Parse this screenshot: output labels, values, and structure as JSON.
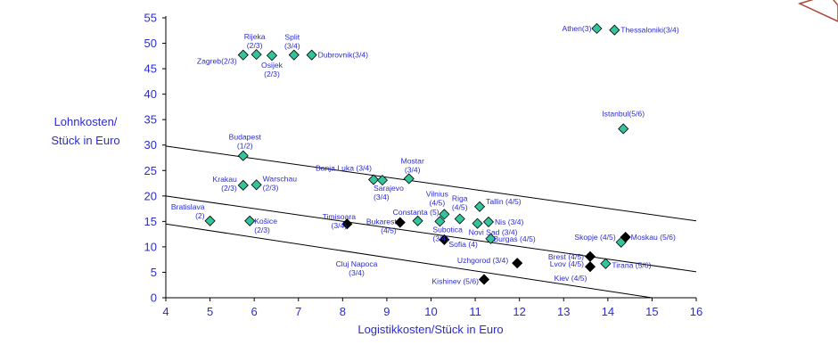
{
  "chart_data": {
    "type": "scatter",
    "title": "",
    "xlabel": "Logistikkosten/Stück in Euro",
    "ylabel_lines": [
      "Lohnkosten/",
      "Stück in Euro"
    ],
    "xlim": [
      4,
      16
    ],
    "ylim": [
      0,
      55
    ],
    "xticks": [
      4,
      5,
      6,
      7,
      8,
      9,
      10,
      11,
      12,
      13,
      14,
      15,
      16
    ],
    "yticks": [
      0,
      5,
      10,
      15,
      20,
      25,
      30,
      35,
      40,
      45,
      50,
      55
    ],
    "grid": false,
    "colors": {
      "axis_text": "#2b2bd0",
      "diamond_green": "#33c49b",
      "diamond_black": "#000000"
    },
    "series": [
      {
        "marker": "green-diamond",
        "points": [
          {
            "x": 5.75,
            "y": 47.7,
            "lines": [
              "Zagreb(2/3)"
            ]
          },
          {
            "x": 6.05,
            "y": 47.8,
            "lines": [
              "Rijeka",
              "(2/3)"
            ]
          },
          {
            "x": 6.4,
            "y": 47.6,
            "lines": [
              "Osijek",
              "(2/3)"
            ]
          },
          {
            "x": 6.9,
            "y": 47.7,
            "lines": [
              "Split",
              "(3/4)"
            ]
          },
          {
            "x": 7.3,
            "y": 47.7,
            "lines": [
              "Dubrovnik(3/4)"
            ]
          },
          {
            "x": 13.75,
            "y": 52.9,
            "lines": [
              "Athen(3)"
            ]
          },
          {
            "x": 14.15,
            "y": 52.6,
            "lines": [
              "Thessaloniki(3/4)"
            ]
          },
          {
            "x": 14.35,
            "y": 33.2,
            "lines": [
              "Istanbul(5/6)"
            ]
          },
          {
            "x": 5.75,
            "y": 27.9,
            "lines": [
              "Budapest",
              "(1/2)"
            ]
          },
          {
            "x": 5.75,
            "y": 22.1,
            "lines": [
              "Krakau",
              "(2/3)"
            ]
          },
          {
            "x": 6.05,
            "y": 22.2,
            "lines": [
              "Warschau",
              "(2/3)"
            ]
          },
          {
            "x": 8.7,
            "y": 23.2,
            "lines": [
              "Banja Luka (3/4)"
            ]
          },
          {
            "x": 8.9,
            "y": 23.1,
            "lines": [
              "Sarajevo",
              "(3/4)"
            ]
          },
          {
            "x": 9.5,
            "y": 23.4,
            "lines": [
              "Mostar",
              "(3/4)"
            ]
          },
          {
            "x": 5.0,
            "y": 15.1,
            "lines": [
              "Bratislava",
              "(2)"
            ]
          },
          {
            "x": 5.9,
            "y": 15.1,
            "lines": [
              "Košice",
              "(2/3)"
            ]
          },
          {
            "x": 9.7,
            "y": 15.1,
            "lines": [
              "Constanta (5)"
            ]
          },
          {
            "x": 10.2,
            "y": 15.0,
            "lines": [
              "Subotica",
              "(3/4)"
            ]
          },
          {
            "x": 10.3,
            "y": 16.4,
            "lines": [
              "Vilnius",
              "(4/5)"
            ]
          },
          {
            "x": 10.65,
            "y": 15.5,
            "lines": [
              "Riga",
              "(4/5)"
            ]
          },
          {
            "x": 11.05,
            "y": 14.6,
            "lines": [
              "Novi Sad (3/4)"
            ]
          },
          {
            "x": 11.1,
            "y": 17.9,
            "lines": [
              "Tallin (4/5)"
            ]
          },
          {
            "x": 11.3,
            "y": 14.9,
            "lines": [
              "Nis (3/4)"
            ]
          },
          {
            "x": 11.35,
            "y": 11.6,
            "lines": [
              "Burgas (4/5)"
            ]
          },
          {
            "x": 14.3,
            "y": 10.9,
            "lines": [
              "Skopje (4/5)"
            ]
          },
          {
            "x": 13.95,
            "y": 6.7,
            "lines": [
              "Tirana (5/6)"
            ]
          }
        ]
      },
      {
        "marker": "black-diamond",
        "points": [
          {
            "x": 8.1,
            "y": 14.5,
            "lines": [
              "Timisoara",
              "(3/4)"
            ]
          },
          {
            "x": 9.3,
            "y": 14.8,
            "lines": [
              "Bukarest",
              "(4/5)"
            ]
          },
          {
            "x": 10.3,
            "y": 11.4,
            "lines": [
              "Sofia (4)"
            ]
          },
          {
            "x": 11.95,
            "y": 6.8,
            "lines": [
              "Uzhgorod (3/4)"
            ]
          },
          {
            "x": 11.2,
            "y": 3.6,
            "lines": [
              "Kishinev (5/6)"
            ]
          },
          {
            "x": 13.6,
            "y": 8.1,
            "lines": [
              "Brest (4/5)"
            ]
          },
          {
            "x": 13.6,
            "y": 6.1,
            "lines": [
              "Lvov (4/5)"
            ]
          },
          {
            "x": 14.4,
            "y": 11.9,
            "lines": [
              "Moskau (5/6)"
            ]
          }
        ],
        "extra_labels": [
          {
            "lines": [
              "Cluj Napoca",
              "(3/4)"
            ]
          },
          {
            "lines": [
              "Kiev (4/5)"
            ]
          }
        ]
      }
    ],
    "reference_lines": [
      {
        "from": [
          4,
          29.8
        ],
        "to": [
          16,
          15.1
        ]
      },
      {
        "from": [
          4,
          20.0
        ],
        "to": [
          16,
          5.1
        ]
      },
      {
        "from": [
          4,
          14.5
        ],
        "to": [
          15,
          0
        ]
      }
    ]
  }
}
